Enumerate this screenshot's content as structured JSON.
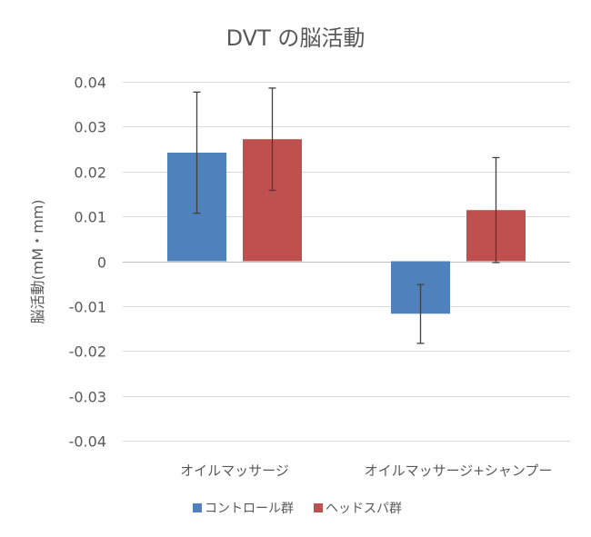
{
  "chart_data": {
    "type": "bar",
    "title": "DVT の脳活動",
    "ylabel": "脳活動(mM・mm)",
    "xlabel": "",
    "categories": [
      "オイルマッサージ",
      "オイルマッサージ+シャンプー"
    ],
    "ylim": [
      -0.04,
      0.04
    ],
    "yticks": [
      "0.04",
      "0.03",
      "0.02",
      "0.01",
      "0",
      "-0.01",
      "-0.02",
      "-0.03",
      "-0.04"
    ],
    "ytick_values": [
      0.04,
      0.03,
      0.02,
      0.01,
      0,
      -0.01,
      -0.02,
      -0.03,
      -0.04
    ],
    "grid": true,
    "legend_position": "bottom",
    "series": [
      {
        "name": "コントロール群",
        "color": "#4f81bd",
        "values": [
          0.0242,
          -0.0117
        ],
        "error_low": [
          0.0107,
          -0.0183
        ],
        "error_high": [
          0.0377,
          -0.0052
        ]
      },
      {
        "name": "ヘッドスパ群",
        "color": "#c0504d",
        "values": [
          0.0272,
          0.0114
        ],
        "error_low": [
          0.0158,
          -0.0003
        ],
        "error_high": [
          0.0386,
          0.0231
        ]
      }
    ]
  }
}
